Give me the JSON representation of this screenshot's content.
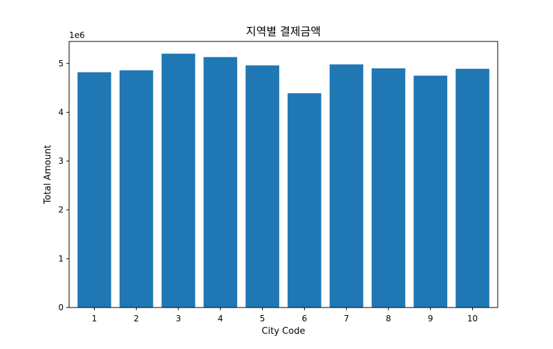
{
  "chart_data": {
    "type": "bar",
    "title": "지역별 결제금액",
    "xlabel": "City Code",
    "ylabel": "Total Amount",
    "y_offset_label": "1e6",
    "categories": [
      "1",
      "2",
      "3",
      "4",
      "5",
      "6",
      "7",
      "8",
      "9",
      "10"
    ],
    "values": [
      4820000,
      4860000,
      5200000,
      5130000,
      4960000,
      4390000,
      4980000,
      4900000,
      4750000,
      4890000
    ],
    "ylim": [
      0,
      5450000
    ],
    "y_ticks": [
      0,
      1000000,
      2000000,
      3000000,
      4000000,
      5000000
    ],
    "y_tick_labels": [
      "0",
      "1",
      "2",
      "3",
      "4",
      "5"
    ],
    "bar_color": "#1f77b4",
    "grid": false,
    "legend": "none"
  }
}
